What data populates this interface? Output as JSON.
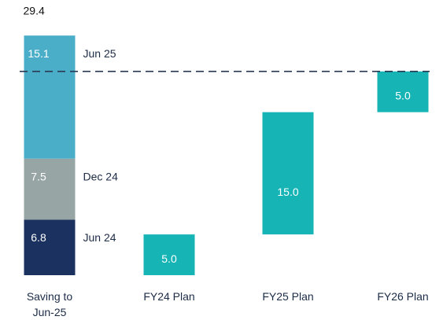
{
  "chart_data": {
    "type": "waterfall",
    "categories": [
      "Saving to Jun-25",
      "FY24 Plan",
      "FY25 Plan",
      "FY26 Plan"
    ],
    "series": [
      {
        "name": "Jun 24",
        "color": "#1b3160",
        "values": [
          6.8,
          null,
          null,
          null
        ]
      },
      {
        "name": "Dec 24",
        "color": "#97a6a4",
        "values": [
          7.5,
          null,
          null,
          null
        ]
      },
      {
        "name": "Jun 25",
        "color": "#4aaec9",
        "values": [
          15.1,
          null,
          null,
          null
        ]
      },
      {
        "color": "#17b4b6",
        "values": [
          null,
          5.0,
          15.0,
          5.0
        ],
        "value_labels": [
          null,
          "5.0",
          "15.0",
          "5.0"
        ]
      }
    ],
    "totals": [
      29.4,
      null,
      null,
      null
    ],
    "reference_line": 25,
    "ylim": [
      0,
      30
    ]
  }
}
